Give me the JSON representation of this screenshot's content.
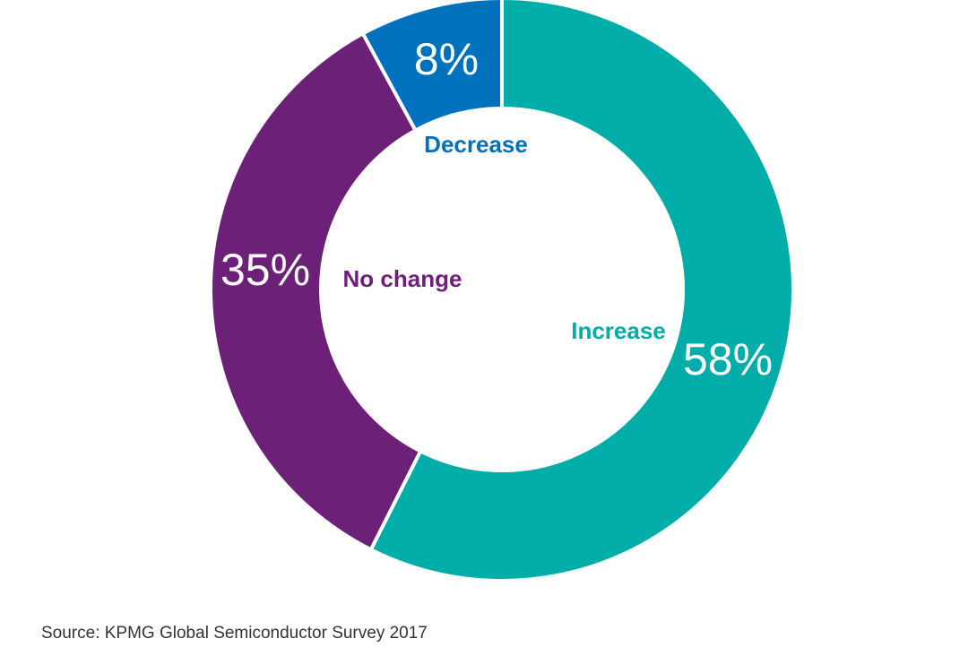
{
  "chart_data": {
    "type": "pie",
    "categories": [
      "Increase",
      "No change",
      "Decrease"
    ],
    "values": [
      58,
      35,
      8
    ],
    "value_labels": [
      "58%",
      "35%",
      "8%"
    ],
    "colors": [
      "#00ADA8",
      "#6D2077",
      "#0071BC"
    ],
    "label_colors": [
      "#00ADA8",
      "#6D2077",
      "#0071BC"
    ],
    "donut": true,
    "start_angle_deg": 0,
    "direction": "clockwise"
  },
  "source": "Source: KPMG Global Semiconductor Survey 2017"
}
